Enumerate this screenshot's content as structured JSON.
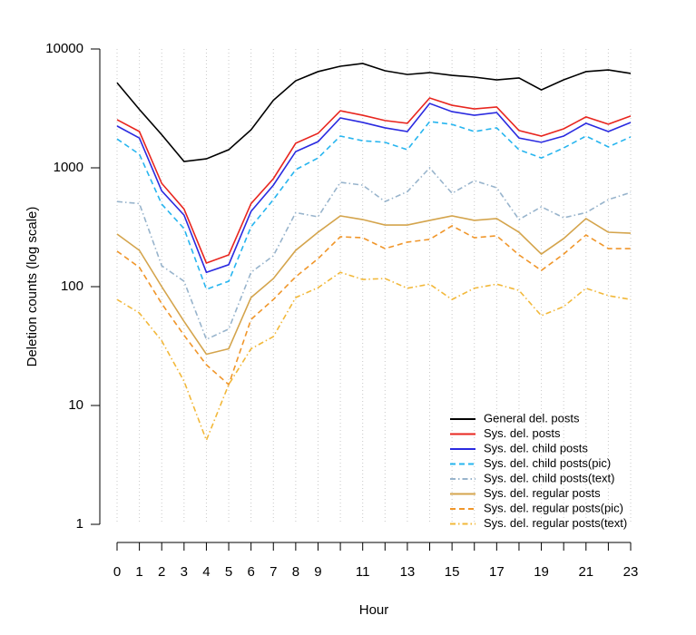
{
  "chart_data": {
    "type": "line",
    "x_label": "Hour",
    "y_label": "Deletion counts (log scale)",
    "x": [
      0,
      1,
      2,
      3,
      4,
      5,
      6,
      7,
      8,
      9,
      10,
      11,
      12,
      13,
      14,
      15,
      16,
      17,
      18,
      19,
      20,
      21,
      22,
      23
    ],
    "xlim": [
      0,
      23
    ],
    "xticks": [
      0,
      1,
      2,
      3,
      4,
      5,
      6,
      7,
      8,
      9,
      11,
      13,
      15,
      17,
      19,
      21,
      23
    ],
    "ylim": [
      1,
      10000
    ],
    "yticks": [
      1,
      10,
      100,
      1000,
      10000
    ],
    "log_y": true,
    "grid_x": true,
    "legend": "bottom-right",
    "series": [
      {
        "name": "General del. posts",
        "color": "#000000",
        "linestyle": "solid",
        "values": [
          5200,
          3100,
          1900,
          1130,
          1190,
          1420,
          2090,
          3700,
          5400,
          6450,
          7160,
          7550,
          6560,
          6100,
          6330,
          6000,
          5800,
          5500,
          5700,
          4530,
          5500,
          6450,
          6670,
          6230
        ]
      },
      {
        "name": "Sys. del. posts",
        "color": "#e8261f",
        "linestyle": "solid",
        "values": [
          2540,
          2020,
          740,
          450,
          158,
          185,
          500,
          810,
          1610,
          1950,
          3020,
          2770,
          2500,
          2370,
          3870,
          3360,
          3130,
          3250,
          2060,
          1850,
          2130,
          2680,
          2330,
          2730
        ]
      },
      {
        "name": "Sys. del. child posts",
        "color": "#2a2ae0",
        "linestyle": "solid",
        "values": [
          2250,
          1780,
          640,
          400,
          132,
          153,
          430,
          715,
          1370,
          1660,
          2630,
          2410,
          2170,
          2020,
          3480,
          2970,
          2770,
          2920,
          1780,
          1640,
          1850,
          2370,
          2020,
          2410
        ]
      },
      {
        "name": "Sys. del. child posts(pic)",
        "color": "#27b5ef",
        "linestyle": "dashed",
        "values": [
          1750,
          1300,
          495,
          308,
          95,
          111,
          319,
          540,
          965,
          1210,
          1850,
          1690,
          1640,
          1420,
          2450,
          2320,
          2020,
          2170,
          1420,
          1210,
          1470,
          1850,
          1500,
          1820
        ]
      },
      {
        "name": "Sys. del. child posts(text)",
        "color": "#98b4cc",
        "linestyle": "dashdot",
        "values": [
          520,
          500,
          150,
          111,
          36,
          44,
          132,
          182,
          420,
          387,
          755,
          715,
          520,
          630,
          1000,
          610,
          780,
          680,
          367,
          470,
          380,
          420,
          540,
          620
        ]
      },
      {
        "name": "Sys. del. regular posts",
        "color": "#d4a44c",
        "linestyle": "solid",
        "values": [
          277,
          202,
          100,
          51,
          27,
          30,
          81,
          117,
          202,
          287,
          394,
          367,
          330,
          330,
          361,
          394,
          361,
          374,
          287,
          188,
          254,
          374,
          287,
          282
        ]
      },
      {
        "name": "Sys. del. regular posts(pic)",
        "color": "#f0962a",
        "linestyle": "dashed",
        "values": [
          199,
          145,
          72,
          39,
          22,
          15,
          53,
          78,
          121,
          172,
          263,
          258,
          209,
          237,
          250,
          325,
          258,
          268,
          185,
          137,
          188,
          272,
          209,
          209
        ]
      },
      {
        "name": "Sys. del. regular posts(text)",
        "color": "#f2b83a",
        "linestyle": "dashdot",
        "values": [
          78,
          60,
          35,
          16,
          5.1,
          15,
          30,
          38,
          81,
          98,
          132,
          115,
          117,
          97,
          105,
          78,
          97,
          105,
          93,
          57,
          68,
          97,
          84,
          78
        ]
      }
    ]
  }
}
